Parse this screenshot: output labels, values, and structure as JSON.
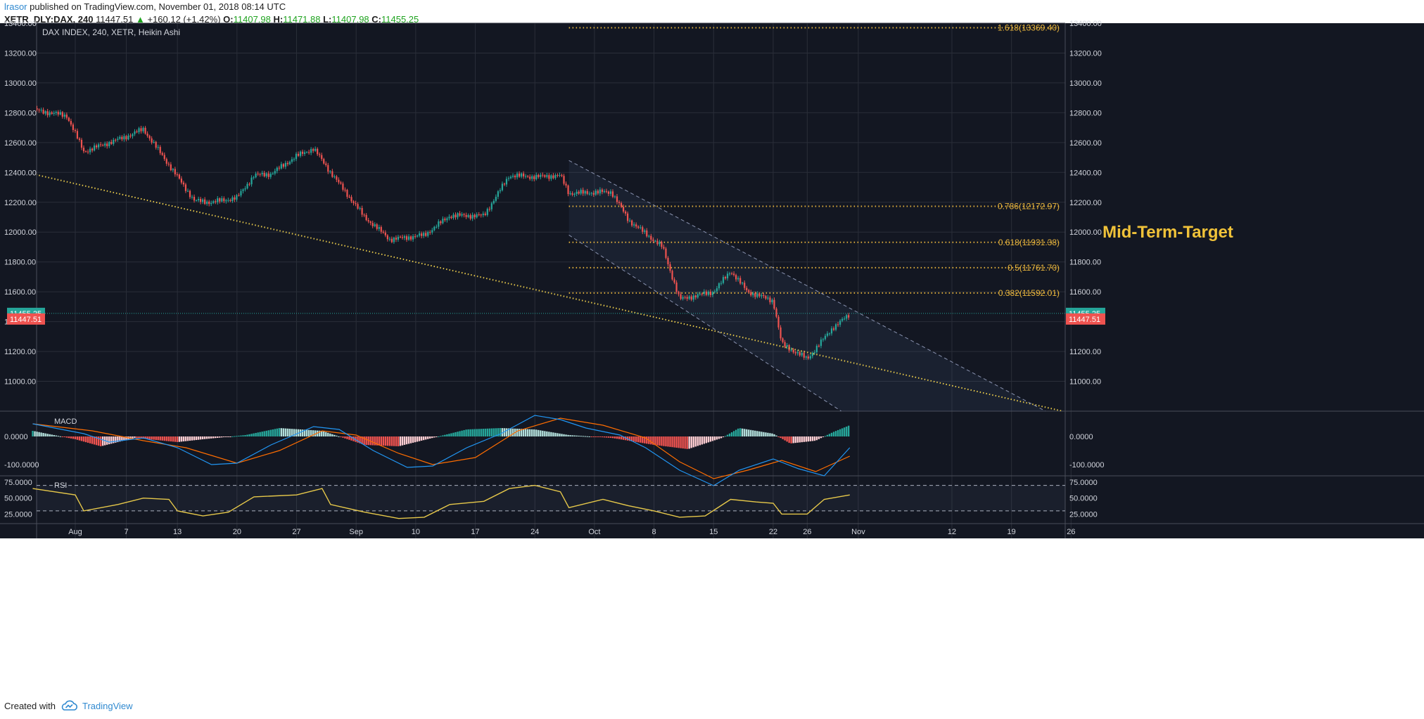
{
  "header": {
    "user": "lrasor",
    "published_text": "published on TradingView.com, November 01, 2018 08:14 UTC",
    "symbol": "XETR_DLY:DAX, 240",
    "price": "11447.51",
    "change": "+160.12 (+1.42%)",
    "o_label": "O:",
    "o_value": "11407.98",
    "h_label": "H:",
    "h_value": "11471.88",
    "l_label": "L:",
    "l_value": "11407.98",
    "c_label": "C:",
    "c_value": "11455.25"
  },
  "footer": {
    "created_with": "Created with",
    "brand": "TradingView"
  },
  "colors": {
    "background": "#131722",
    "grid": "#2a2e39",
    "up": "#26a69a",
    "down": "#ef5350",
    "fib": "#e6b33c",
    "trend": "#e6c84a",
    "macd": "#2196f3",
    "signal": "#ff6d00",
    "rsi": "#e6c84a",
    "hist_up": "#26a69a",
    "hist_up_light": "#b2dfdb",
    "hist_down": "#ef5350",
    "hist_down_light": "#ffcdd2",
    "label_teal": "#26a69a",
    "label_red": "#ef5350"
  },
  "chart_data": {
    "type": "candlestick",
    "title": "DAX INDEX, 240, XETR, Heikin Ashi",
    "ylim": [
      10800,
      13400
    ],
    "y_ticks": [
      "13400.00",
      "13200.00",
      "13000.00",
      "12800.00",
      "12600.00",
      "12400.00",
      "12200.00",
      "12000.00",
      "11800.00",
      "11600.00",
      "11400.00",
      "11200.00",
      "11000.00"
    ],
    "x_ticks": [
      {
        "label": "Aug",
        "date": "2018-08-01"
      },
      {
        "label": "7",
        "date": "2018-08-07"
      },
      {
        "label": "13",
        "date": "2018-08-13"
      },
      {
        "label": "20",
        "date": "2018-08-20"
      },
      {
        "label": "27",
        "date": "2018-08-27"
      },
      {
        "label": "Sep",
        "date": "2018-09-03"
      },
      {
        "label": "10",
        "date": "2018-09-10"
      },
      {
        "label": "17",
        "date": "2018-09-17"
      },
      {
        "label": "24",
        "date": "2018-09-24"
      },
      {
        "label": "Oct",
        "date": "2018-10-01"
      },
      {
        "label": "8",
        "date": "2018-10-08"
      },
      {
        "label": "15",
        "date": "2018-10-15"
      },
      {
        "label": "22",
        "date": "2018-10-22"
      },
      {
        "label": "26",
        "date": "2018-10-26"
      },
      {
        "label": "Nov",
        "date": "2018-11-01"
      },
      {
        "label": "12",
        "date": "2018-11-12"
      },
      {
        "label": "19",
        "date": "2018-11-19"
      },
      {
        "label": "26",
        "date": "2018-11-26"
      }
    ],
    "price_path": [
      {
        "date": "2018-07-27",
        "price": 12820
      },
      {
        "date": "2018-07-31",
        "price": 12780
      },
      {
        "date": "2018-08-02",
        "price": 12540
      },
      {
        "date": "2018-08-07",
        "price": 12640
      },
      {
        "date": "2018-08-09",
        "price": 12690
      },
      {
        "date": "2018-08-10",
        "price": 12610
      },
      {
        "date": "2018-08-13",
        "price": 12370
      },
      {
        "date": "2018-08-15",
        "price": 12210
      },
      {
        "date": "2018-08-17",
        "price": 12200
      },
      {
        "date": "2018-08-20",
        "price": 12230
      },
      {
        "date": "2018-08-22",
        "price": 12380
      },
      {
        "date": "2018-08-24",
        "price": 12390
      },
      {
        "date": "2018-08-27",
        "price": 12510
      },
      {
        "date": "2018-08-29",
        "price": 12560
      },
      {
        "date": "2018-08-31",
        "price": 12400
      },
      {
        "date": "2018-09-04",
        "price": 12100
      },
      {
        "date": "2018-09-07",
        "price": 11950
      },
      {
        "date": "2018-09-11",
        "price": 11980
      },
      {
        "date": "2018-09-14",
        "price": 12110
      },
      {
        "date": "2018-09-18",
        "price": 12110
      },
      {
        "date": "2018-09-21",
        "price": 12380
      },
      {
        "date": "2018-09-24",
        "price": 12370
      },
      {
        "date": "2018-09-27",
        "price": 12380
      },
      {
        "date": "2018-09-28",
        "price": 12260
      },
      {
        "date": "2018-10-03",
        "price": 12270
      },
      {
        "date": "2018-10-05",
        "price": 12080
      },
      {
        "date": "2018-10-09",
        "price": 11900
      },
      {
        "date": "2018-10-11",
        "price": 11550
      },
      {
        "date": "2018-10-15",
        "price": 11600
      },
      {
        "date": "2018-10-17",
        "price": 11740
      },
      {
        "date": "2018-10-19",
        "price": 11600
      },
      {
        "date": "2018-10-22",
        "price": 11540
      },
      {
        "date": "2018-10-23",
        "price": 11250
      },
      {
        "date": "2018-10-26",
        "price": 11150
      },
      {
        "date": "2018-10-29",
        "price": 11360
      },
      {
        "date": "2018-10-31",
        "price": 11447
      }
    ],
    "fib_levels": [
      {
        "label": "1.618(13369.40)",
        "value": 13369.4
      },
      {
        "label": "0.786(12172.97)",
        "value": 12172.97
      },
      {
        "label": "0.618(11931.38)",
        "value": 11931.38
      },
      {
        "label": "0.5(11761.70)",
        "value": 11761.7
      },
      {
        "label": "0.382(11592.01)",
        "value": 11592.01
      }
    ],
    "fib_start_date": "2018-09-28",
    "annotation": "Mid-Term-Target",
    "trendline": [
      {
        "date": "2018-07-27",
        "price": 12390
      },
      {
        "date": "2018-11-25",
        "price": 10800
      }
    ],
    "channel_upper": [
      {
        "date": "2018-09-28",
        "price": 12480
      },
      {
        "date": "2018-11-23",
        "price": 10800
      }
    ],
    "channel_lower": [
      {
        "date": "2018-09-28",
        "price": 11980
      },
      {
        "date": "2018-10-30",
        "price": 10800
      }
    ],
    "last_price_label": "11455.25",
    "last_price": 11455.25,
    "current_price_label": "11447.51",
    "current_price": 11447.51,
    "macd": {
      "label": "MACD",
      "ylim": [
        -140,
        90
      ],
      "ticks": [
        "0.0000",
        "-100.0000"
      ],
      "macd_line": [
        {
          "date": "2018-07-27",
          "value": 45
        },
        {
          "date": "2018-08-02",
          "value": 10
        },
        {
          "date": "2018-08-05",
          "value": -20
        },
        {
          "date": "2018-08-09",
          "value": -5
        },
        {
          "date": "2018-08-13",
          "value": -40
        },
        {
          "date": "2018-08-17",
          "value": -100
        },
        {
          "date": "2018-08-20",
          "value": -95
        },
        {
          "date": "2018-08-24",
          "value": -30
        },
        {
          "date": "2018-08-29",
          "value": 35
        },
        {
          "date": "2018-09-01",
          "value": 25
        },
        {
          "date": "2018-09-05",
          "value": -50
        },
        {
          "date": "2018-09-09",
          "value": -110
        },
        {
          "date": "2018-09-12",
          "value": -105
        },
        {
          "date": "2018-09-16",
          "value": -40
        },
        {
          "date": "2018-09-20",
          "value": 10
        },
        {
          "date": "2018-09-24",
          "value": 75
        },
        {
          "date": "2018-09-27",
          "value": 60
        },
        {
          "date": "2018-09-30",
          "value": 30
        },
        {
          "date": "2018-10-04",
          "value": 5
        },
        {
          "date": "2018-10-07",
          "value": -40
        },
        {
          "date": "2018-10-11",
          "value": -120
        },
        {
          "date": "2018-10-15",
          "value": -175
        },
        {
          "date": "2018-10-18",
          "value": -120
        },
        {
          "date": "2018-10-22",
          "value": -80
        },
        {
          "date": "2018-10-25",
          "value": -115
        },
        {
          "date": "2018-10-28",
          "value": -140
        },
        {
          "date": "2018-10-31",
          "value": -40
        }
      ],
      "signal_line": [
        {
          "date": "2018-07-27",
          "value": 45
        },
        {
          "date": "2018-08-03",
          "value": 20
        },
        {
          "date": "2018-08-09",
          "value": -15
        },
        {
          "date": "2018-08-14",
          "value": -40
        },
        {
          "date": "2018-08-20",
          "value": -95
        },
        {
          "date": "2018-08-25",
          "value": -50
        },
        {
          "date": "2018-08-30",
          "value": 20
        },
        {
          "date": "2018-09-03",
          "value": 5
        },
        {
          "date": "2018-09-08",
          "value": -60
        },
        {
          "date": "2018-09-12",
          "value": -100
        },
        {
          "date": "2018-09-17",
          "value": -75
        },
        {
          "date": "2018-09-22",
          "value": 20
        },
        {
          "date": "2018-09-27",
          "value": 65
        },
        {
          "date": "2018-10-02",
          "value": 40
        },
        {
          "date": "2018-10-07",
          "value": -5
        },
        {
          "date": "2018-10-11",
          "value": -90
        },
        {
          "date": "2018-10-15",
          "value": -150
        },
        {
          "date": "2018-10-19",
          "value": -120
        },
        {
          "date": "2018-10-23",
          "value": -85
        },
        {
          "date": "2018-10-27",
          "value": -125
        },
        {
          "date": "2018-10-31",
          "value": -70
        }
      ],
      "histogram": [
        {
          "date": "2018-07-27",
          "value": 20
        },
        {
          "date": "2018-08-01",
          "value": -10
        },
        {
          "date": "2018-08-04",
          "value": -35
        },
        {
          "date": "2018-08-08",
          "value": -5
        },
        {
          "date": "2018-08-13",
          "value": -20
        },
        {
          "date": "2018-08-16",
          "value": -10
        },
        {
          "date": "2018-08-21",
          "value": 5
        },
        {
          "date": "2018-08-25",
          "value": 30
        },
        {
          "date": "2018-08-30",
          "value": 20
        },
        {
          "date": "2018-09-04",
          "value": -30
        },
        {
          "date": "2018-09-08",
          "value": -35
        },
        {
          "date": "2018-09-12",
          "value": -5
        },
        {
          "date": "2018-09-16",
          "value": 25
        },
        {
          "date": "2018-09-20",
          "value": 30
        },
        {
          "date": "2018-09-24",
          "value": 25
        },
        {
          "date": "2018-09-28",
          "value": 5
        },
        {
          "date": "2018-10-03",
          "value": -5
        },
        {
          "date": "2018-10-08",
          "value": -30
        },
        {
          "date": "2018-10-12",
          "value": -45
        },
        {
          "date": "2018-10-16",
          "value": -5
        },
        {
          "date": "2018-10-18",
          "value": 30
        },
        {
          "date": "2018-10-22",
          "value": 10
        },
        {
          "date": "2018-10-24",
          "value": -25
        },
        {
          "date": "2018-10-27",
          "value": -15
        },
        {
          "date": "2018-10-29",
          "value": 15
        },
        {
          "date": "2018-10-31",
          "value": 40
        }
      ]
    },
    "rsi": {
      "label": "RSI",
      "ylim": [
        10,
        85
      ],
      "ticks": [
        "75.0000",
        "50.0000",
        "25.0000"
      ],
      "bands": [
        70,
        30
      ],
      "path": [
        {
          "date": "2018-07-27",
          "value": 65
        },
        {
          "date": "2018-08-01",
          "value": 55
        },
        {
          "date": "2018-08-02",
          "value": 30
        },
        {
          "date": "2018-08-06",
          "value": 40
        },
        {
          "date": "2018-08-09",
          "value": 50
        },
        {
          "date": "2018-08-12",
          "value": 48
        },
        {
          "date": "2018-08-13",
          "value": 30
        },
        {
          "date": "2018-08-16",
          "value": 22
        },
        {
          "date": "2018-08-19",
          "value": 28
        },
        {
          "date": "2018-08-22",
          "value": 52
        },
        {
          "date": "2018-08-27",
          "value": 55
        },
        {
          "date": "2018-08-30",
          "value": 65
        },
        {
          "date": "2018-08-31",
          "value": 40
        },
        {
          "date": "2018-09-04",
          "value": 28
        },
        {
          "date": "2018-09-08",
          "value": 18
        },
        {
          "date": "2018-09-11",
          "value": 20
        },
        {
          "date": "2018-09-14",
          "value": 40
        },
        {
          "date": "2018-09-18",
          "value": 45
        },
        {
          "date": "2018-09-21",
          "value": 65
        },
        {
          "date": "2018-09-24",
          "value": 70
        },
        {
          "date": "2018-09-27",
          "value": 60
        },
        {
          "date": "2018-09-28",
          "value": 35
        },
        {
          "date": "2018-10-02",
          "value": 48
        },
        {
          "date": "2018-10-05",
          "value": 38
        },
        {
          "date": "2018-10-08",
          "value": 30
        },
        {
          "date": "2018-10-11",
          "value": 20
        },
        {
          "date": "2018-10-14",
          "value": 22
        },
        {
          "date": "2018-10-17",
          "value": 48
        },
        {
          "date": "2018-10-20",
          "value": 44
        },
        {
          "date": "2018-10-22",
          "value": 42
        },
        {
          "date": "2018-10-23",
          "value": 25
        },
        {
          "date": "2018-10-26",
          "value": 25
        },
        {
          "date": "2018-10-28",
          "value": 48
        },
        {
          "date": "2018-10-31",
          "value": 55
        }
      ]
    }
  }
}
